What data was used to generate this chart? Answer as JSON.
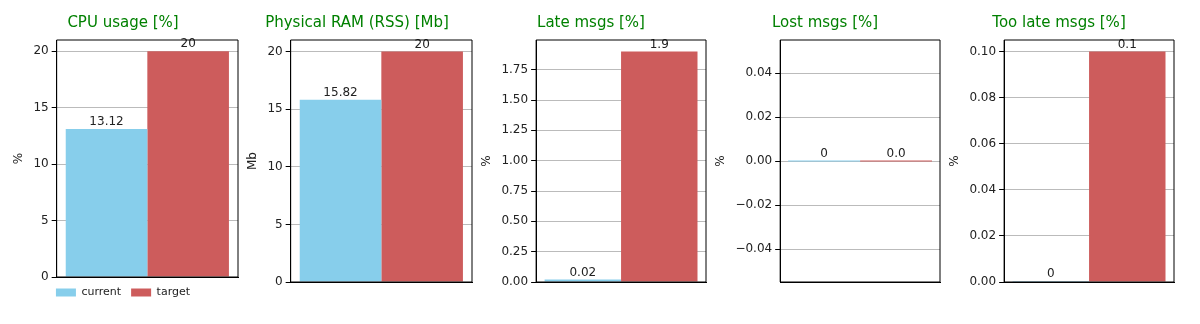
{
  "chart_data": [
    {
      "type": "bar",
      "title": "CPU usage [%]",
      "ylabel": "%",
      "categories": [
        null
      ],
      "ylim": [
        0,
        21
      ],
      "yticks": [
        0,
        5,
        10,
        15,
        20
      ],
      "grid": "y",
      "legend": "bottom",
      "series": [
        {
          "name": "current",
          "color": "#87ceeb",
          "values": [
            13.12
          ],
          "value_labels": [
            "13.12"
          ]
        },
        {
          "name": "target",
          "color": "#cd5c5c",
          "values": [
            20
          ],
          "value_labels": [
            "20"
          ]
        }
      ]
    },
    {
      "type": "bar",
      "title": "Physical RAM (RSS) [Mb]",
      "ylabel": "Mb",
      "categories": [
        null
      ],
      "ylim": [
        0,
        21
      ],
      "yticks": [
        0,
        5,
        10,
        15,
        20
      ],
      "grid": "y",
      "series": [
        {
          "color": "#87ceeb",
          "values": [
            15.82
          ],
          "value_labels": [
            "15.82"
          ]
        },
        {
          "color": "#cd5c5c",
          "values": [
            20
          ],
          "value_labels": [
            "20"
          ]
        }
      ]
    },
    {
      "type": "bar",
      "title": "Late msgs [%]",
      "ylabel": "%",
      "categories": [
        null
      ],
      "ylim": [
        0,
        1.995
      ],
      "yticks": [
        {
          "value": 0,
          "label": "0.00"
        },
        0.25,
        {
          "value": 0.5,
          "label": "0.50"
        },
        0.75,
        {
          "value": 1,
          "label": "1.00"
        },
        1.25,
        {
          "value": 1.5,
          "label": "1.50"
        },
        1.75
      ],
      "grid": "y",
      "series": [
        {
          "color": "#87ceeb",
          "values": [
            0.02
          ],
          "value_labels": [
            "0.02"
          ]
        },
        {
          "color": "#cd5c5c",
          "values": [
            1.9
          ],
          "value_labels": [
            "1.9"
          ]
        }
      ]
    },
    {
      "type": "bar",
      "title": "Lost msgs [%]",
      "ylabel": "%",
      "categories": [
        null
      ],
      "ylim": [
        -0.055,
        0.055
      ],
      "yticks": [
        {
          "value": -0.04,
          "label": "−0.04"
        },
        {
          "value": -0.02,
          "label": "−0.02"
        },
        {
          "value": 0,
          "label": "0.00"
        },
        0.02,
        0.04
      ],
      "grid": "y",
      "series": [
        {
          "color": "#87ceeb",
          "values": [
            0
          ],
          "value_labels": [
            "0"
          ]
        },
        {
          "color": "#cd5c5c",
          "values": [
            0
          ],
          "value_labels": [
            "0.0"
          ]
        }
      ]
    },
    {
      "type": "bar",
      "title": "Too late msgs [%]",
      "ylabel": "%",
      "categories": [
        null
      ],
      "ylim": [
        0,
        0.105
      ],
      "yticks": [
        {
          "value": 0,
          "label": "0.00"
        },
        0.02,
        0.04,
        0.06,
        0.08,
        {
          "value": 0.1,
          "label": "0.10"
        }
      ],
      "grid": "y",
      "series": [
        {
          "color": "#87ceeb",
          "values": [
            0
          ],
          "value_labels": [
            "0"
          ]
        },
        {
          "color": "#cd5c5c",
          "values": [
            0.1
          ],
          "value_labels": [
            "0.1"
          ]
        }
      ]
    }
  ]
}
